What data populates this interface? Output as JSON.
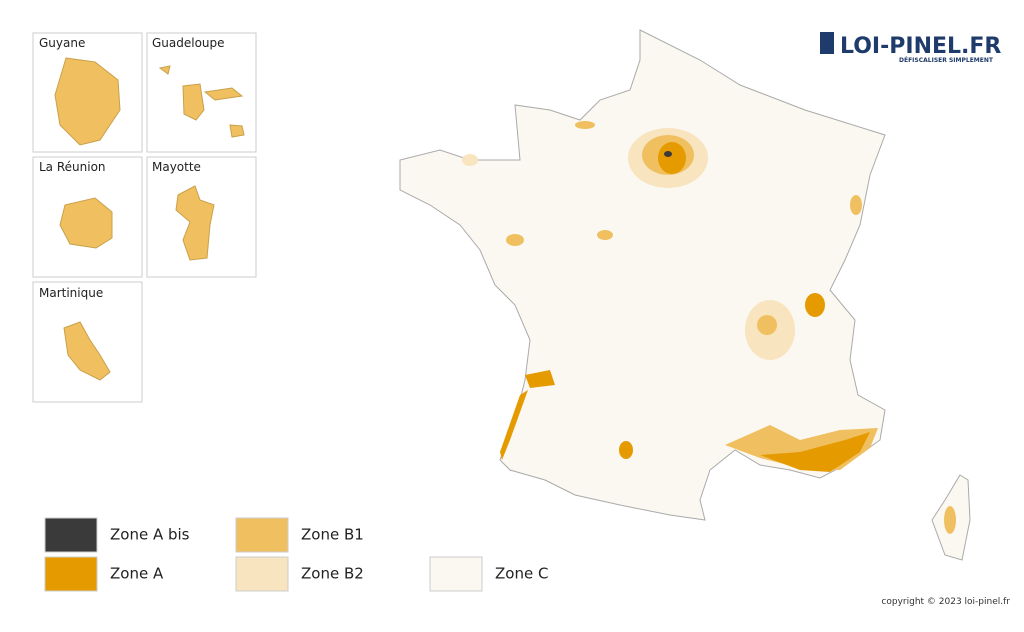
{
  "logo": {
    "title": "LOI-PINEL.FR",
    "tagline": "DÉFISCALISER SIMPLEMENT"
  },
  "insets": [
    "Guyane",
    "Guadeloupe",
    "La Réunion",
    "Mayotte",
    "Martinique"
  ],
  "legend": [
    {
      "label": "Zone A bis",
      "color": "#3a3a3a"
    },
    {
      "label": "Zone A",
      "color": "#e59a00"
    },
    {
      "label": "Zone B1",
      "color": "#f0c060"
    },
    {
      "label": "Zone B2",
      "color": "#f8e4bf"
    },
    {
      "label": "Zone C",
      "color": "#fbf8f1"
    }
  ],
  "copyright": "copyright © 2023 loi-pinel.fr"
}
